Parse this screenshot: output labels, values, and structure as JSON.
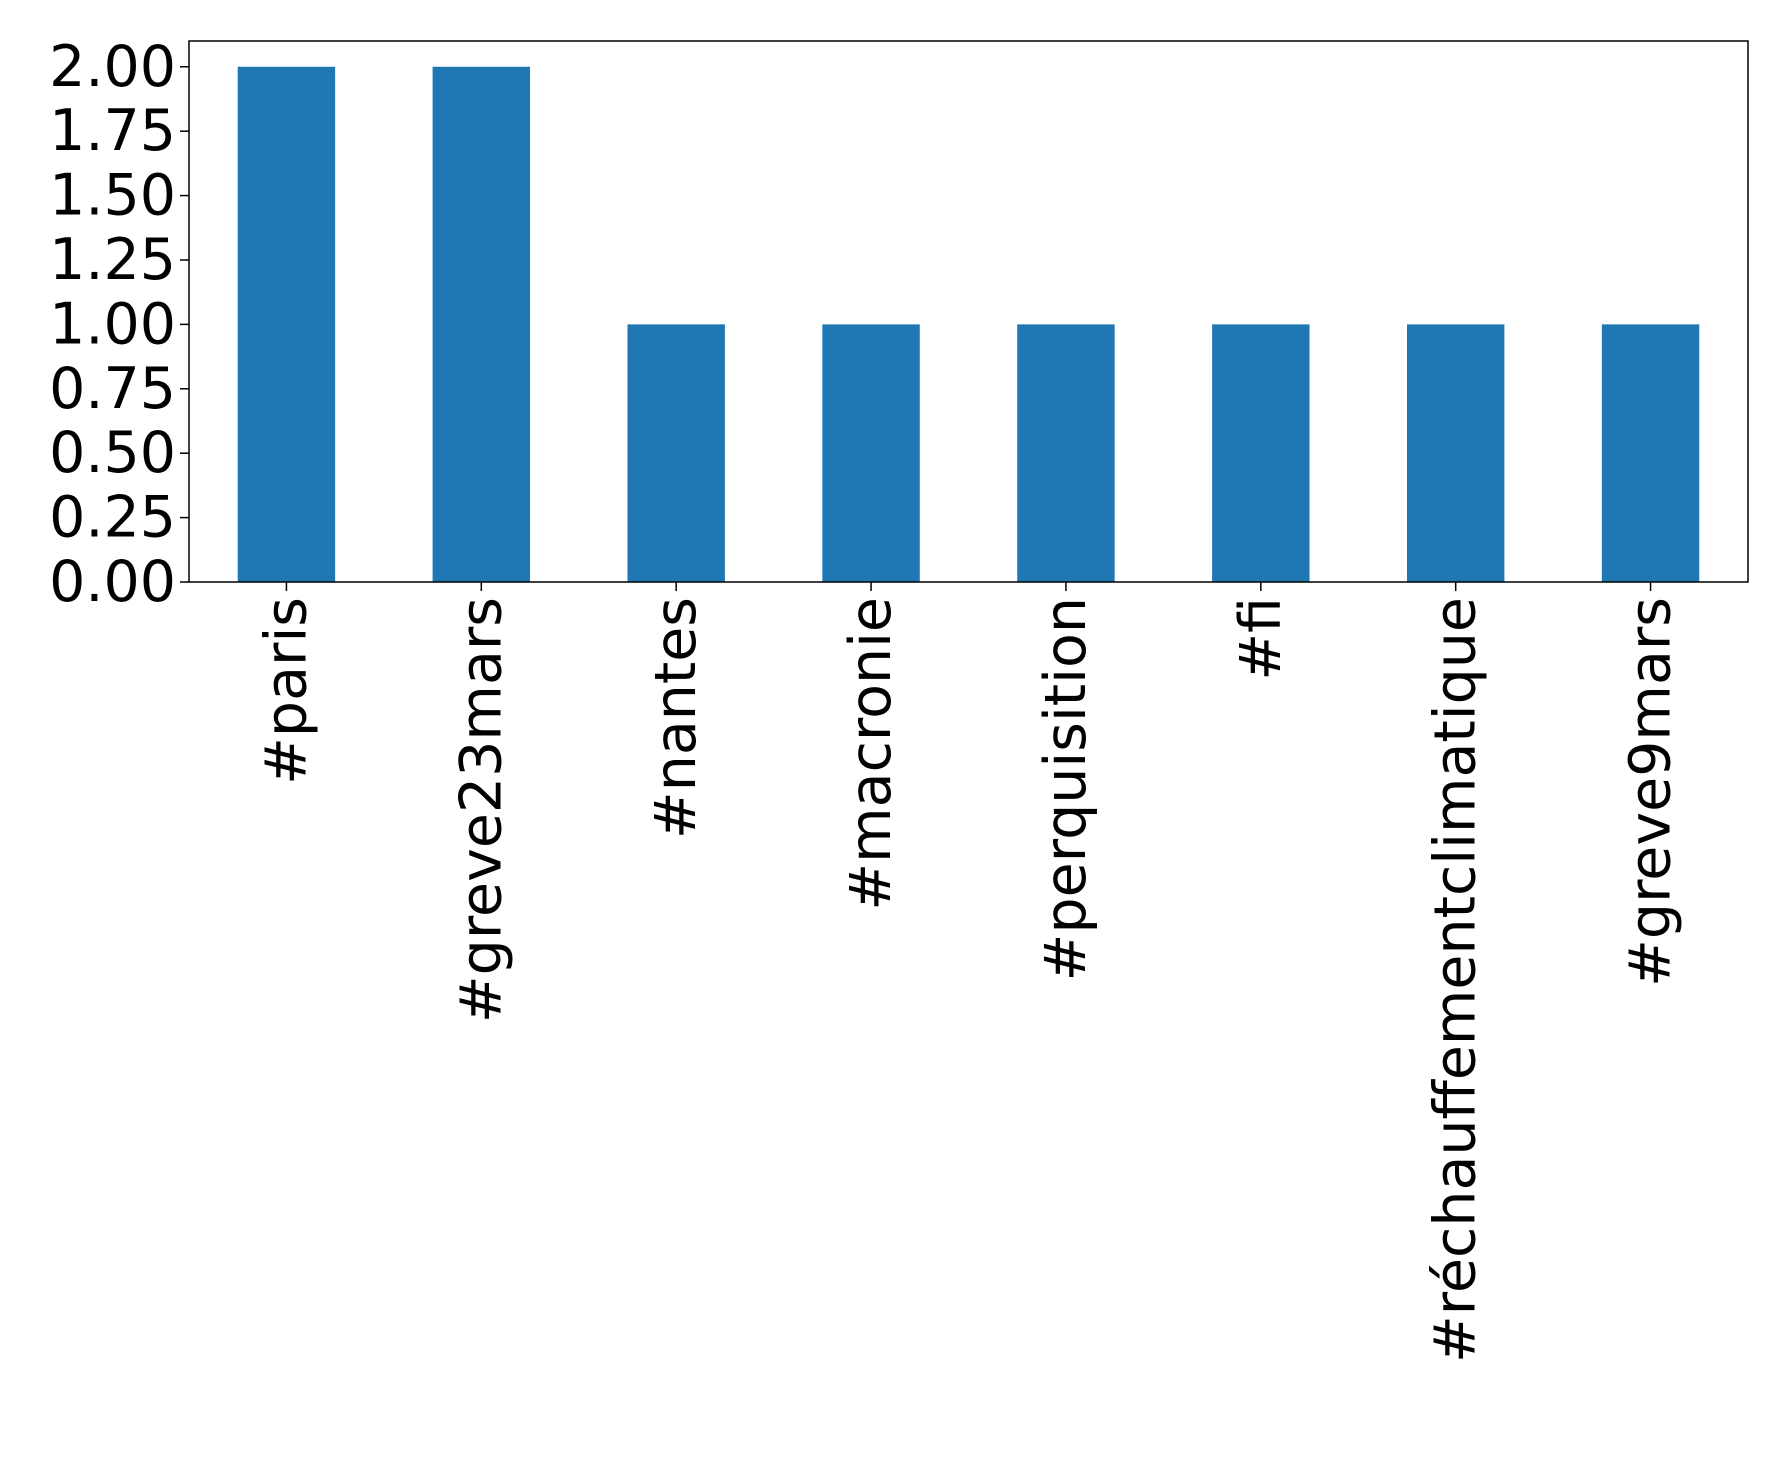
{
  "chart_data": {
    "type": "bar",
    "title": "",
    "xlabel": "",
    "ylabel": "",
    "categories": [
      "#paris",
      "#greve23mars",
      "#nantes",
      "#macronie",
      "#perquisition",
      "#fi",
      "#réchauffementclimatique",
      "#greve9mars"
    ],
    "values": [
      2,
      2,
      1,
      1,
      1,
      1,
      1,
      1
    ],
    "ylim": [
      0,
      2.1
    ],
    "yticks": [
      0,
      0.25,
      0.5,
      0.75,
      1.0,
      1.25,
      1.5,
      1.75,
      2.0
    ],
    "ytick_labels": [
      "0.00",
      "0.25",
      "0.50",
      "0.75",
      "1.00",
      "1.25",
      "1.50",
      "1.75",
      "2.00"
    ],
    "bar_color": "#1f77b4",
    "grid": false,
    "legend": "none"
  }
}
